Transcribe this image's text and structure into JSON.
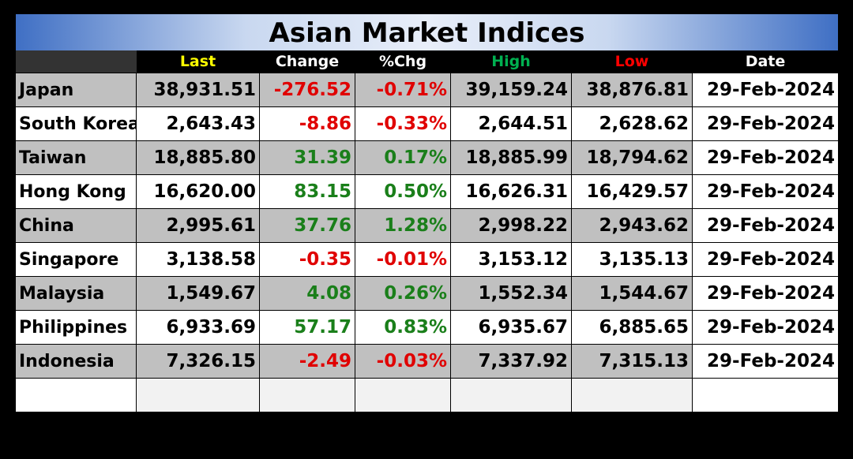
{
  "title": "Asian Market Indices",
  "colors": {
    "positive": "#1a7f1a",
    "negative": "#e00000",
    "header_last": "#ffff00",
    "header_high": "#00b050",
    "header_low": "#ff0000",
    "header_default": "#ffffff"
  },
  "headers": {
    "name": "",
    "last": "Last",
    "change": "Change",
    "pct": "%Chg",
    "high": "High",
    "low": "Low",
    "date": "Date"
  },
  "rows": [
    {
      "name": "Japan",
      "last": "38,931.51",
      "change": "-276.52",
      "pct": "-0.71%",
      "high": "39,159.24",
      "low": "38,876.81",
      "date": "29-Feb-2024",
      "direction": "down"
    },
    {
      "name": "South Korea",
      "last": "2,643.43",
      "change": "-8.86",
      "pct": "-0.33%",
      "high": "2,644.51",
      "low": "2,628.62",
      "date": "29-Feb-2024",
      "direction": "down"
    },
    {
      "name": "Taiwan",
      "last": "18,885.80",
      "change": "31.39",
      "pct": "0.17%",
      "high": "18,885.99",
      "low": "18,794.62",
      "date": "29-Feb-2024",
      "direction": "up"
    },
    {
      "name": "Hong Kong",
      "last": "16,620.00",
      "change": "83.15",
      "pct": "0.50%",
      "high": "16,626.31",
      "low": "16,429.57",
      "date": "29-Feb-2024",
      "direction": "up"
    },
    {
      "name": "China",
      "last": "2,995.61",
      "change": "37.76",
      "pct": "1.28%",
      "high": "2,998.22",
      "low": "2,943.62",
      "date": "29-Feb-2024",
      "direction": "up"
    },
    {
      "name": "Singapore",
      "last": "3,138.58",
      "change": "-0.35",
      "pct": "-0.01%",
      "high": "3,153.12",
      "low": "3,135.13",
      "date": "29-Feb-2024",
      "direction": "down"
    },
    {
      "name": "Malaysia",
      "last": "1,549.67",
      "change": "4.08",
      "pct": "0.26%",
      "high": "1,552.34",
      "low": "1,544.67",
      "date": "29-Feb-2024",
      "direction": "up"
    },
    {
      "name": "Philippines",
      "last": "6,933.69",
      "change": "57.17",
      "pct": "0.83%",
      "high": "6,935.67",
      "low": "6,885.65",
      "date": "29-Feb-2024",
      "direction": "up"
    },
    {
      "name": "Indonesia",
      "last": "7,326.15",
      "change": "-2.49",
      "pct": "-0.03%",
      "high": "7,337.92",
      "low": "7,315.13",
      "date": "29-Feb-2024",
      "direction": "down"
    }
  ]
}
